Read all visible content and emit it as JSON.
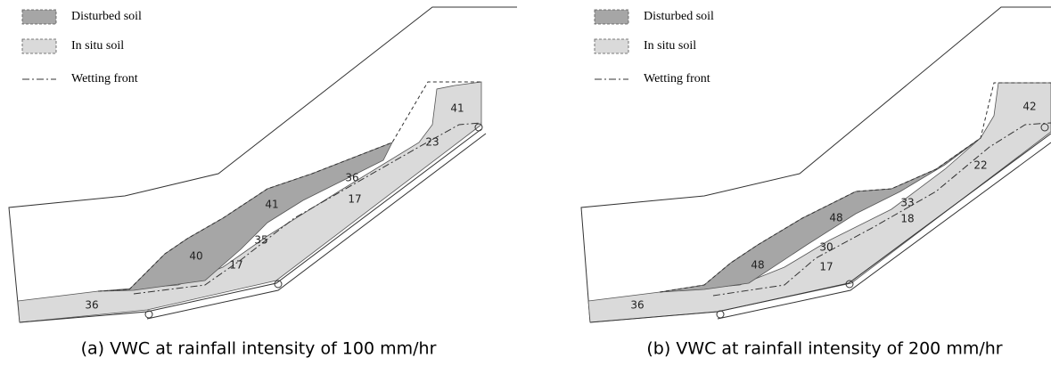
{
  "panels": [
    {
      "legend": [
        "Disturbed soil",
        "In situ soil",
        "Wetting front"
      ],
      "labels": [
        "36",
        "40",
        "17",
        "35",
        "41",
        "17",
        "36",
        "41",
        "23"
      ],
      "caption": "(a) VWC at rainfall intensity of  100 mm/hr"
    },
    {
      "legend": [
        "Disturbed soil",
        "In situ soil",
        "Wetting front"
      ],
      "labels": [
        "36",
        "48",
        "17",
        "30",
        "48",
        "18",
        "33",
        "22",
        "42"
      ],
      "caption": "(b) VWC at rainfall intensity of  200 mm/hr"
    }
  ]
}
